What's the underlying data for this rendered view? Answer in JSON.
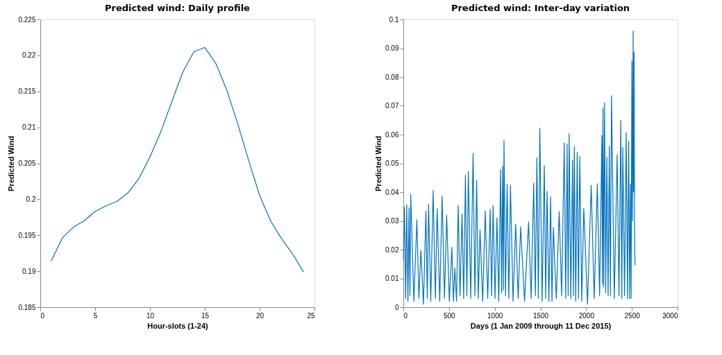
{
  "chart_data": [
    {
      "type": "line",
      "title": "Predicted wind: Daily profile",
      "xlabel": "Hour-slots (1-24)",
      "ylabel": "Predicted Wind",
      "x": [
        1,
        2,
        3,
        4,
        5,
        6,
        7,
        8,
        9,
        10,
        11,
        12,
        13,
        14,
        15,
        16,
        17,
        18,
        19,
        20,
        21,
        22,
        23,
        24
      ],
      "series": [
        {
          "color": "#0072bd",
          "values": [
            0.1914,
            0.1946,
            0.1961,
            0.197,
            0.1983,
            0.1991,
            0.1997,
            0.2009,
            0.2029,
            0.2059,
            0.2094,
            0.2136,
            0.2177,
            0.2205,
            0.2211,
            0.2189,
            0.2152,
            0.2105,
            0.2054,
            0.2005,
            0.197,
            0.1945,
            0.1924,
            0.1899
          ]
        }
      ],
      "xlim": [
        0,
        25
      ],
      "xticks": [
        0,
        5,
        10,
        15,
        20,
        25
      ],
      "ylim": [
        0.185,
        0.225
      ],
      "yticks": [
        0.185,
        0.19,
        0.195,
        0.2,
        0.205,
        0.21,
        0.215,
        0.22,
        0.225
      ],
      "grid": false,
      "legend": false,
      "marker": "none",
      "line_style": "solid"
    },
    {
      "type": "line",
      "title": "Predicted wind: Inter-day variation",
      "xlabel": "Days (1 Jan 2009 through 11 Dec 2015)",
      "ylabel": "Predicted Wind",
      "x": [
        1,
        12,
        25,
        37,
        50,
        62,
        72,
        81,
        115,
        148,
        170,
        192,
        220,
        247,
        262,
        276,
        300,
        326,
        350,
        370,
        398,
        424,
        450,
        474,
        503,
        531,
        548,
        563,
        582,
        600,
        620,
        642,
        660,
        679,
        695,
        711,
        737,
        763,
        783,
        802,
        820,
        839,
        868,
        896,
        923,
        950,
        966,
        982,
        1003,
        1024,
        1044,
        1064,
        1075,
        1086,
        1094,
        1101,
        1118,
        1135,
        1154,
        1172,
        1200,
        1229,
        1256,
        1283,
        1326,
        1370,
        1398,
        1426,
        1444,
        1461,
        1477,
        1493,
        1518,
        1542,
        1557,
        1572,
        1592,
        1611,
        1626,
        1641,
        1673,
        1705,
        1732,
        1760,
        1776,
        1792,
        1803,
        1814,
        1832,
        1851,
        1861,
        1870,
        1886,
        1902,
        1916,
        1930,
        1952,
        1974,
        2015,
        2055,
        2088,
        2122,
        2147,
        2172,
        2178,
        2184,
        2192,
        2201,
        2214,
        2226,
        2240,
        2253,
        2265,
        2277,
        2308,
        2339,
        2359,
        2379,
        2390,
        2401,
        2420,
        2438,
        2452,
        2465,
        2475,
        2485,
        2492,
        2500,
        2507,
        2514,
        2519,
        2524,
        2529,
        2534
      ],
      "series": [
        {
          "color": "#0072bd",
          "values": [
            0.0162,
            0.0348,
            0.003,
            0.0356,
            0.002,
            0.0345,
            0.004,
            0.0393,
            0.002,
            0.0304,
            0.003,
            0.0198,
            0.001,
            0.0334,
            0.003,
            0.0358,
            0.002,
            0.0406,
            0.003,
            0.0342,
            0.002,
            0.0385,
            0.003,
            0.0319,
            0.002,
            0.0208,
            0.002,
            0.0136,
            0.002,
            0.0354,
            0.004,
            0.0323,
            0.003,
            0.0458,
            0.004,
            0.0472,
            0.003,
            0.0535,
            0.004,
            0.044,
            0.003,
            0.0269,
            0.002,
            0.0334,
            0.003,
            0.034,
            0.004,
            0.0353,
            0.003,
            0.0311,
            0.002,
            0.0478,
            0.005,
            0.049,
            0.006,
            0.0579,
            0.004,
            0.0427,
            0.003,
            0.0424,
            0.002,
            0.0289,
            0.003,
            0.0279,
            0.002,
            0.0296,
            0.003,
            0.0431,
            0.004,
            0.0519,
            0.003,
            0.0622,
            0.002,
            0.0492,
            0.003,
            0.0403,
            0.002,
            0.0383,
            0.002,
            0.0277,
            0.003,
            0.0332,
            0.004,
            0.0571,
            0.003,
            0.0567,
            0.004,
            0.0603,
            0.003,
            0.051,
            0.004,
            0.0559,
            0.002,
            0.0538,
            0.003,
            0.0524,
            0.002,
            0.0344,
            0.001,
            0.0424,
            0.003,
            0.0429,
            0.004,
            0.0597,
            0.008,
            0.0693,
            0.007,
            0.0711,
            0.005,
            0.0522,
            0.004,
            0.0559,
            0.004,
            0.0735,
            0.003,
            0.053,
            0.004,
            0.0649,
            0.003,
            0.0555,
            0.004,
            0.0606,
            0.003,
            0.0577,
            0.003,
            0.0427,
            0.003,
            0.0856,
            0.03,
            0.096,
            0.04,
            0.0885,
            0.03,
            0.0146
          ]
        }
      ],
      "xlim": [
        0,
        3000
      ],
      "xticks": [
        0,
        500,
        1000,
        1500,
        2000,
        2500,
        3000
      ],
      "ylim": [
        0,
        0.1
      ],
      "yticks": [
        0,
        0.01,
        0.02,
        0.03,
        0.04,
        0.05,
        0.06,
        0.07,
        0.08,
        0.09,
        0.1
      ],
      "grid": false,
      "legend": false,
      "marker": "none",
      "line_style": "solid"
    }
  ]
}
